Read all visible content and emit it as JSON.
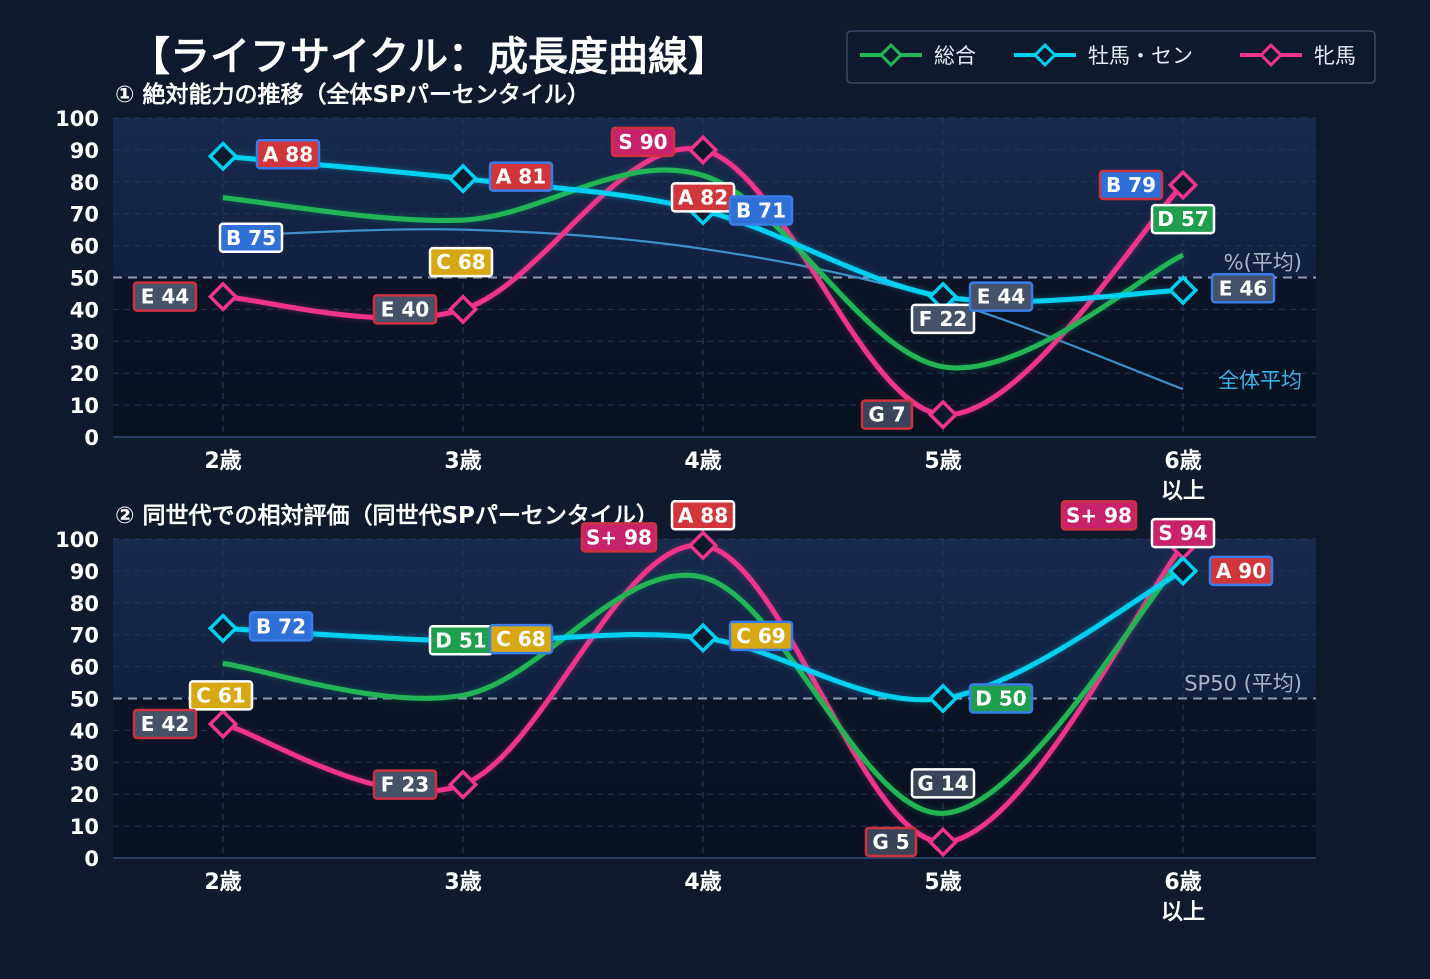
{
  "title": "【ライフサイクル：成長度曲線】",
  "legend": {
    "items": [
      {
        "label": "総合",
        "color": "#22b455"
      },
      {
        "label": "牡馬・セン",
        "color": "#00d0f0"
      },
      {
        "label": "牝馬",
        "color": "#f0348c"
      }
    ]
  },
  "grade_colors": {
    "S": "#c8236a",
    "A": "#d0363c",
    "B": "#2f6fd8",
    "C": "#d8a814",
    "D": "#1f9e4e",
    "E": "#46526a",
    "F": "#46526a",
    "G": "#3a4458"
  },
  "chart_data": [
    {
      "type": "line",
      "title": "① 絶対能力の推移（全体SPパーセンタイル）",
      "categories": [
        "2歳",
        "3歳",
        "4歳",
        "5歳",
        "6歳\n以上"
      ],
      "ylim": [
        0,
        100
      ],
      "yticks": [
        0,
        10,
        20,
        30,
        40,
        50,
        60,
        70,
        80,
        90,
        100
      ],
      "grid": true,
      "reference_line": {
        "value": 50,
        "label": "%(平均)"
      },
      "average_curve": {
        "label": "全体平均",
        "values": [
          63,
          65,
          59,
          43,
          15
        ]
      },
      "series": [
        {
          "name": "総合",
          "values": [
            75,
            68,
            82,
            22,
            57
          ],
          "grades": [
            "B 75",
            "C 68",
            "A 82",
            "F 22",
            "D 57"
          ]
        },
        {
          "name": "牡馬・セン",
          "values": [
            88,
            81,
            71,
            44,
            46
          ],
          "grades": [
            "A 88",
            "A 81",
            "B 71",
            "E 44",
            "E 46"
          ]
        },
        {
          "name": "牝馬",
          "values": [
            44,
            40,
            90,
            7,
            79
          ],
          "grades": [
            "E 44",
            "E 40",
            "S 90",
            "G 7",
            "B 79"
          ]
        }
      ]
    },
    {
      "type": "line",
      "title": "② 同世代での相対評価（同世代SPパーセンタイル）",
      "categories": [
        "2歳",
        "3歳",
        "4歳",
        "5歳",
        "6歳\n以上"
      ],
      "ylim": [
        0,
        100
      ],
      "yticks": [
        0,
        10,
        20,
        30,
        40,
        50,
        60,
        70,
        80,
        90,
        100
      ],
      "grid": true,
      "reference_line": {
        "value": 50,
        "label": "SP50 (平均)"
      },
      "series": [
        {
          "name": "総合",
          "values": [
            61,
            51,
            88,
            14,
            94
          ],
          "grades": [
            "C 61",
            "D 51",
            "A 88",
            "G 14",
            "S 94"
          ]
        },
        {
          "name": "牡馬・セン",
          "values": [
            72,
            68,
            69,
            50,
            90
          ],
          "grades": [
            "B 72",
            "C 68",
            "C 69",
            "D 50",
            "A 90"
          ]
        },
        {
          "name": "牝馬",
          "values": [
            42,
            23,
            98,
            5,
            98
          ],
          "grades": [
            "E 42",
            "F 23",
            "S+ 98",
            "G 5",
            "S+ 98"
          ]
        }
      ]
    }
  ]
}
